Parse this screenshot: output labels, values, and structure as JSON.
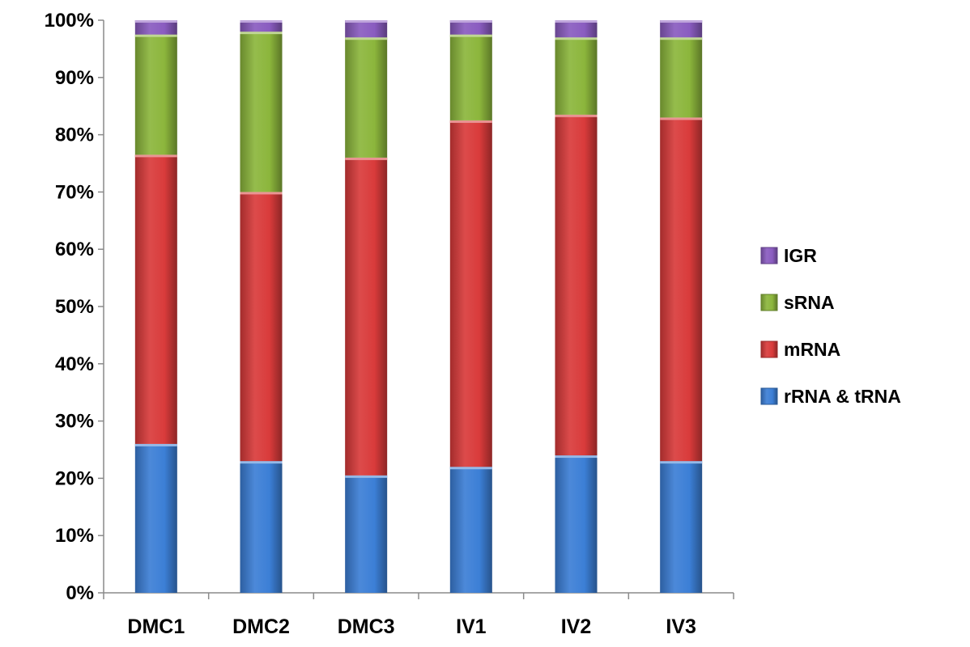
{
  "chart_data": {
    "type": "bar",
    "stacked": true,
    "percent_stacked": true,
    "title": "",
    "xlabel": "",
    "ylabel": "",
    "ylim": [
      0,
      100
    ],
    "y_ticks": [
      "0%",
      "10%",
      "20%",
      "30%",
      "40%",
      "50%",
      "60%",
      "70%",
      "80%",
      "90%",
      "100%"
    ],
    "categories": [
      "DMC1",
      "DMC2",
      "DMC3",
      "IV1",
      "IV2",
      "IV3"
    ],
    "series": [
      {
        "name": "rRNA & tRNA",
        "color": "#3c7fd6",
        "values": [
          26.0,
          23.0,
          20.5,
          22.0,
          24.0,
          23.0
        ]
      },
      {
        "name": "mRNA",
        "color": "#d93b3b",
        "values": [
          50.5,
          47.0,
          55.5,
          60.5,
          59.5,
          60.0
        ]
      },
      {
        "name": "sRNA",
        "color": "#8cb63c",
        "values": [
          21.0,
          28.0,
          21.0,
          15.0,
          13.5,
          14.0
        ]
      },
      {
        "name": "IGR",
        "color": "#8a5cc0",
        "values": [
          2.5,
          2.0,
          3.0,
          2.5,
          3.0,
          3.0
        ]
      }
    ],
    "legend_position": "right",
    "legend_order": [
      "IGR",
      "sRNA",
      "mRNA",
      "rRNA & tRNA"
    ],
    "grid": false
  }
}
